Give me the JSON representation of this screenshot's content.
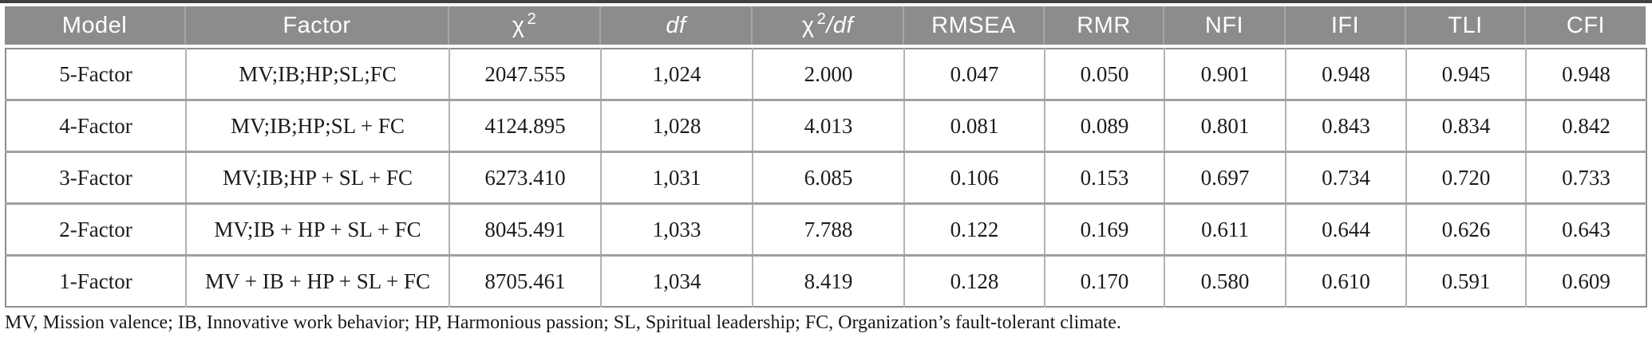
{
  "colors": {
    "header_bg": "#8c8c8c",
    "header_text": "#ffffff",
    "body_text": "#1c1c1c",
    "outer_border": "#8e8e8e",
    "row_separator": "#a0a0a0",
    "cell_separator": "#b3b3b3",
    "top_rule": "#414141"
  },
  "table": {
    "columns": [
      {
        "id": "model",
        "base": "Model"
      },
      {
        "id": "factor",
        "base": "Factor"
      },
      {
        "id": "chi2",
        "base": "χ",
        "sup": "2"
      },
      {
        "id": "df",
        "base": "df",
        "base_italic": true
      },
      {
        "id": "chi2df",
        "base": "χ",
        "sup": "2",
        "suffix": "/df",
        "suffix_italic": true
      },
      {
        "id": "rmsea",
        "base": "RMSEA"
      },
      {
        "id": "rmr",
        "base": "RMR"
      },
      {
        "id": "nfi",
        "base": "NFI"
      },
      {
        "id": "ifi",
        "base": "IFI"
      },
      {
        "id": "tli",
        "base": "TLI"
      },
      {
        "id": "cfi",
        "base": "CFI"
      }
    ],
    "rows": [
      {
        "cells": [
          "5-Factor",
          "MV;IB;HP;SL;FC",
          "2047.555",
          "1,024",
          "2.000",
          "0.047",
          "0.050",
          "0.901",
          "0.948",
          "0.945",
          "0.948"
        ]
      },
      {
        "cells": [
          "4-Factor",
          "MV;IB;HP;SL + FC",
          "4124.895",
          "1,028",
          "4.013",
          "0.081",
          "0.089",
          "0.801",
          "0.843",
          "0.834",
          "0.842"
        ]
      },
      {
        "cells": [
          "3-Factor",
          "MV;IB;HP + SL + FC",
          "6273.410",
          "1,031",
          "6.085",
          "0.106",
          "0.153",
          "0.697",
          "0.734",
          "0.720",
          "0.733"
        ]
      },
      {
        "cells": [
          "2-Factor",
          "MV;IB + HP + SL + FC",
          "8045.491",
          "1,033",
          "7.788",
          "0.122",
          "0.169",
          "0.611",
          "0.644",
          "0.626",
          "0.643"
        ]
      },
      {
        "cells": [
          "1-Factor",
          "MV + IB + HP + SL + FC",
          "8705.461",
          "1,034",
          "8.419",
          "0.128",
          "0.170",
          "0.580",
          "0.610",
          "0.591",
          "0.609"
        ]
      }
    ],
    "footnote": "MV, Mission valence; IB, Innovative work behavior; HP, Harmonious passion; SL, Spiritual leadership; FC, Organization’s fault-tolerant climate."
  }
}
